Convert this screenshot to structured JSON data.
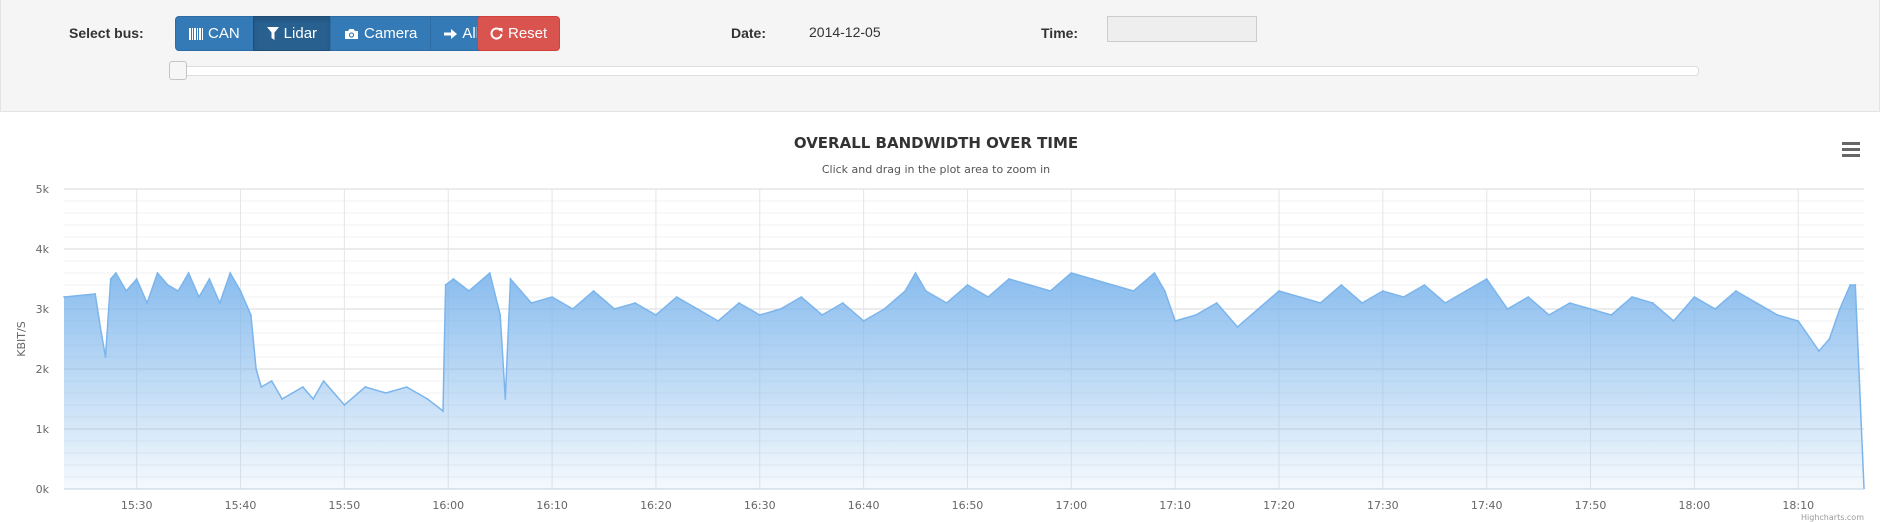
{
  "controls": {
    "select_bus_label": "Select bus:",
    "buttons": [
      {
        "label": "CAN",
        "icon": "barcode-icon",
        "active": false
      },
      {
        "label": "Lidar",
        "icon": "filter-icon",
        "active": true
      },
      {
        "label": "Camera",
        "icon": "camera-icon",
        "active": false
      },
      {
        "label": "All",
        "icon": "arrow-right-icon",
        "active": false
      }
    ],
    "reset_label": "Reset",
    "reset_icon": "refresh-icon",
    "date_label": "Date:",
    "date_value": "2014-12-05",
    "time_label": "Time:",
    "time_value": "",
    "slider_position": 0
  },
  "colors": {
    "primary": "#337ab7",
    "primary_active": "#286090",
    "danger": "#d9534f",
    "series_line": "#7cb5ec"
  },
  "chart_menu_icon": "hamburger-menu-icon",
  "chart_data": {
    "type": "area",
    "title": "OVERALL BANDWIDTH OVER TIME",
    "subtitle": "Click and drag in the plot area to zoom in",
    "ylabel": "KBIT/S",
    "xlabel": "",
    "ylim": [
      0,
      5000
    ],
    "y_ticks": [
      "0k",
      "1k",
      "2k",
      "3k",
      "4k",
      "5k"
    ],
    "x_ticks": [
      "15:30",
      "15:40",
      "15:50",
      "16:00",
      "16:10",
      "16:20",
      "16:30",
      "16:40",
      "16:50",
      "17:00",
      "17:10",
      "17:20",
      "17:30",
      "17:40",
      "17:50",
      "18:00",
      "18:10"
    ],
    "xlim": [
      "15:23:00",
      "18:16:20"
    ],
    "grid": true,
    "legend": "none",
    "credits": "Highcharts.com",
    "series": [
      {
        "x": [
          "15:23:00",
          "15:26:00",
          "15:26:30",
          "15:27:00",
          "15:27:30",
          "15:28:00",
          "15:29:00",
          "15:30:00",
          "15:31:00",
          "15:32:00",
          "15:33:00",
          "15:34:00",
          "15:35:00",
          "15:36:00",
          "15:37:00",
          "15:38:00",
          "15:39:00",
          "15:40:00",
          "15:41:00",
          "15:41:30",
          "15:42:00",
          "15:43:00",
          "15:44:00",
          "15:45:00",
          "15:46:00",
          "15:47:00",
          "15:48:00",
          "15:49:00",
          "15:50:00",
          "15:52:00",
          "15:54:00",
          "15:56:00",
          "15:58:00",
          "15:59:30",
          "15:59:45",
          "16:00:30",
          "16:02:00",
          "16:04:00",
          "16:05:00",
          "16:05:30",
          "16:06:00",
          "16:07:00",
          "16:08:00",
          "16:10:00",
          "16:12:00",
          "16:14:00",
          "16:16:00",
          "16:18:00",
          "16:20:00",
          "16:22:00",
          "16:24:00",
          "16:26:00",
          "16:28:00",
          "16:30:00",
          "16:32:00",
          "16:34:00",
          "16:36:00",
          "16:38:00",
          "16:40:00",
          "16:42:00",
          "16:44:00",
          "16:45:00",
          "16:46:00",
          "16:48:00",
          "16:50:00",
          "16:52:00",
          "16:54:00",
          "16:56:00",
          "16:58:00",
          "17:00:00",
          "17:02:00",
          "17:04:00",
          "17:06:00",
          "17:08:00",
          "17:09:00",
          "17:10:00",
          "17:12:00",
          "17:14:00",
          "17:16:00",
          "17:18:00",
          "17:20:00",
          "17:22:00",
          "17:24:00",
          "17:26:00",
          "17:28:00",
          "17:30:00",
          "17:32:00",
          "17:34:00",
          "17:36:00",
          "17:38:00",
          "17:40:00",
          "17:42:00",
          "17:44:00",
          "17:46:00",
          "17:48:00",
          "17:50:00",
          "17:52:00",
          "17:54:00",
          "17:56:00",
          "17:58:00",
          "18:00:00",
          "18:02:00",
          "18:04:00",
          "18:06:00",
          "18:08:00",
          "18:10:00",
          "18:12:00",
          "18:13:00",
          "18:14:00",
          "18:15:00",
          "18:15:30",
          "18:16:20"
        ],
        "y": [
          3200,
          3250,
          2700,
          2200,
          3500,
          3600,
          3300,
          3500,
          3100,
          3600,
          3400,
          3300,
          3600,
          3200,
          3500,
          3100,
          3600,
          3300,
          2900,
          2000,
          1700,
          1800,
          1500,
          1600,
          1700,
          1500,
          1800,
          1600,
          1400,
          1700,
          1600,
          1700,
          1500,
          1300,
          3400,
          3500,
          3300,
          3600,
          2900,
          1500,
          3500,
          3300,
          3100,
          3200,
          3000,
          3300,
          3000,
          3100,
          2900,
          3200,
          3000,
          2800,
          3100,
          2900,
          3000,
          3200,
          2900,
          3100,
          2800,
          3000,
          3300,
          3600,
          3300,
          3100,
          3400,
          3200,
          3500,
          3400,
          3300,
          3600,
          3500,
          3400,
          3300,
          3600,
          3300,
          2800,
          2900,
          3100,
          2700,
          3000,
          3300,
          3200,
          3100,
          3400,
          3100,
          3300,
          3200,
          3400,
          3100,
          3300,
          3500,
          3000,
          3200,
          2900,
          3100,
          3000,
          2900,
          3200,
          3100,
          2800,
          3200,
          3000,
          3300,
          3100,
          2900,
          2800,
          2300,
          2500,
          3000,
          3400,
          3400,
          10
        ]
      }
    ]
  }
}
